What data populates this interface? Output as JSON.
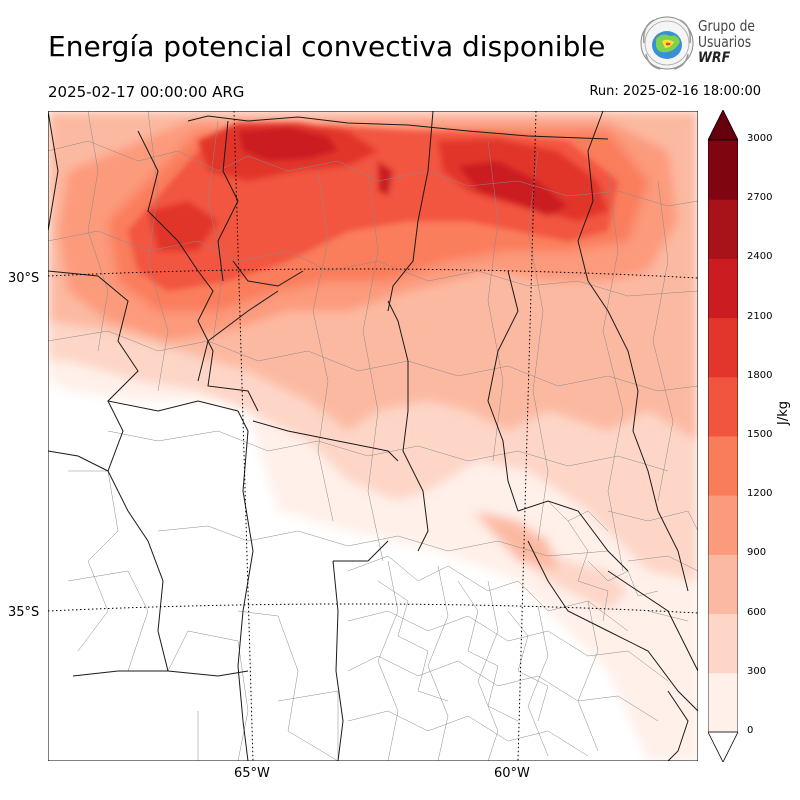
{
  "header": {
    "title": "Energía potencial convectiva disponible",
    "valid_time": "2025-02-17 00:00:00 ARG",
    "run_time": "Run: 2025-02-16 18:00:00"
  },
  "logo": {
    "line1": "Grupo de",
    "line2": "Usuarios",
    "line3": "WRF"
  },
  "map": {
    "lat_labels": [
      "30°S",
      "35°S"
    ],
    "lon_labels": [
      "65°W",
      "60°W"
    ],
    "colors": {
      "land_bg": "#ffffff",
      "border": "#1a1a1a",
      "department": "#8a8a8a",
      "graticule": "#000000"
    }
  },
  "colorbar": {
    "unit": "J/kg",
    "ticks": [
      "0",
      "300",
      "600",
      "900",
      "1200",
      "1500",
      "1800",
      "2100",
      "2400",
      "2700",
      "3000"
    ],
    "colors": [
      "#fff0ea",
      "#fdd6c7",
      "#fcb9a1",
      "#fc9a7c",
      "#fa7d5b",
      "#f2553f",
      "#e2352b",
      "#cb1d21",
      "#a81219",
      "#7f0610"
    ],
    "over_color": "#67000d",
    "under_color": "#ffffff"
  }
}
